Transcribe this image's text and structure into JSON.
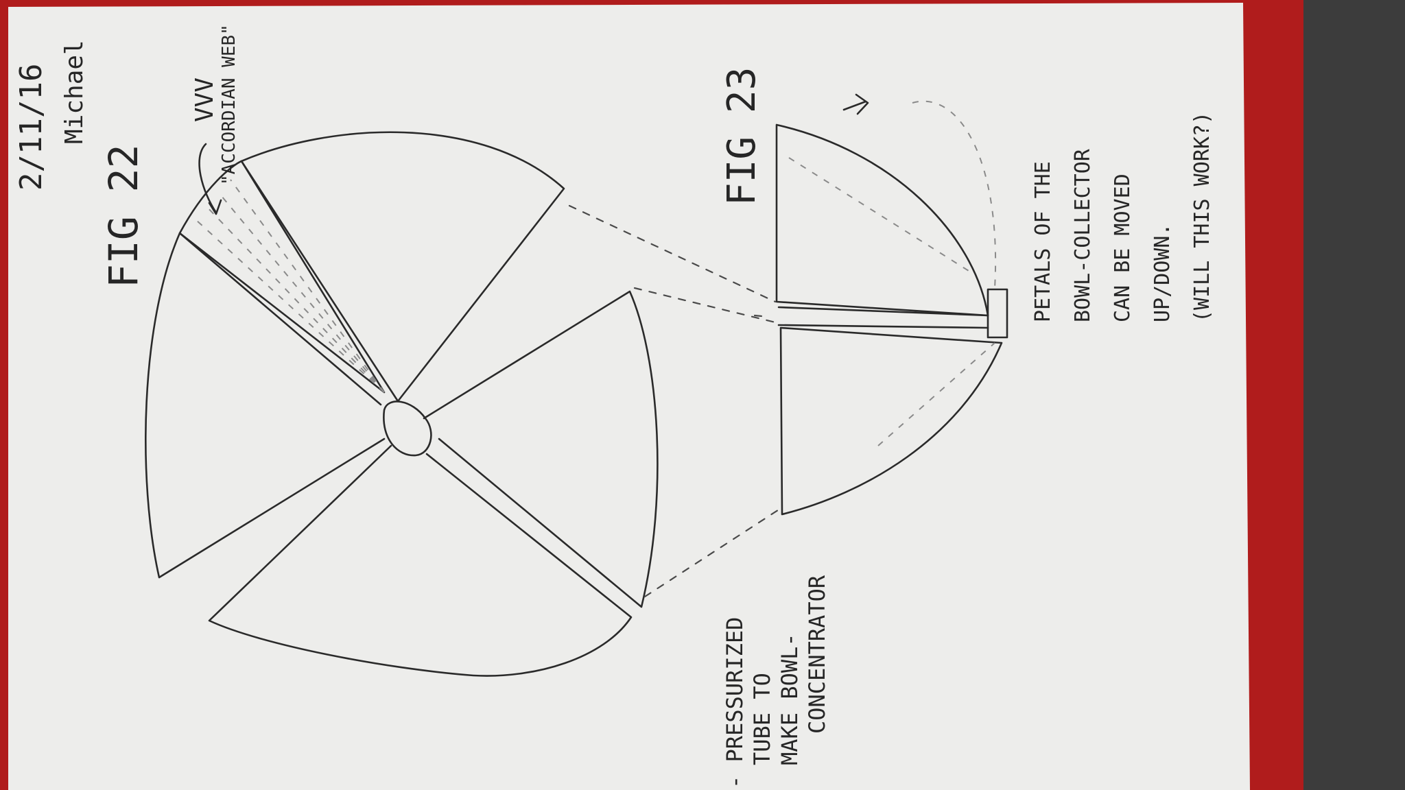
{
  "sheet": {
    "paper_color": "#ededeb",
    "background_color": "#b01c1c",
    "dark_corner_color": "#3c3c3c"
  },
  "header": {
    "date": "2/11/16",
    "author": "Michael"
  },
  "figures": {
    "fig22": {
      "label": "FIG 22"
    },
    "fig23": {
      "label": "FIG 23"
    }
  },
  "notes": {
    "accordion_web": "\"ACCORDIAN WEB\"",
    "accordion_symbol": "VVV",
    "pressurized_tube": [
      "- PRESSURIZED",
      "TUBE TO",
      "MAKE BOWL-",
      "CONCENTRATOR"
    ],
    "petals": [
      "PETALS OF THE",
      "BOWL-COLLECTOR",
      "CAN BE MOVED",
      "UP/DOWN.",
      "(WILL THIS WORK?)"
    ]
  }
}
